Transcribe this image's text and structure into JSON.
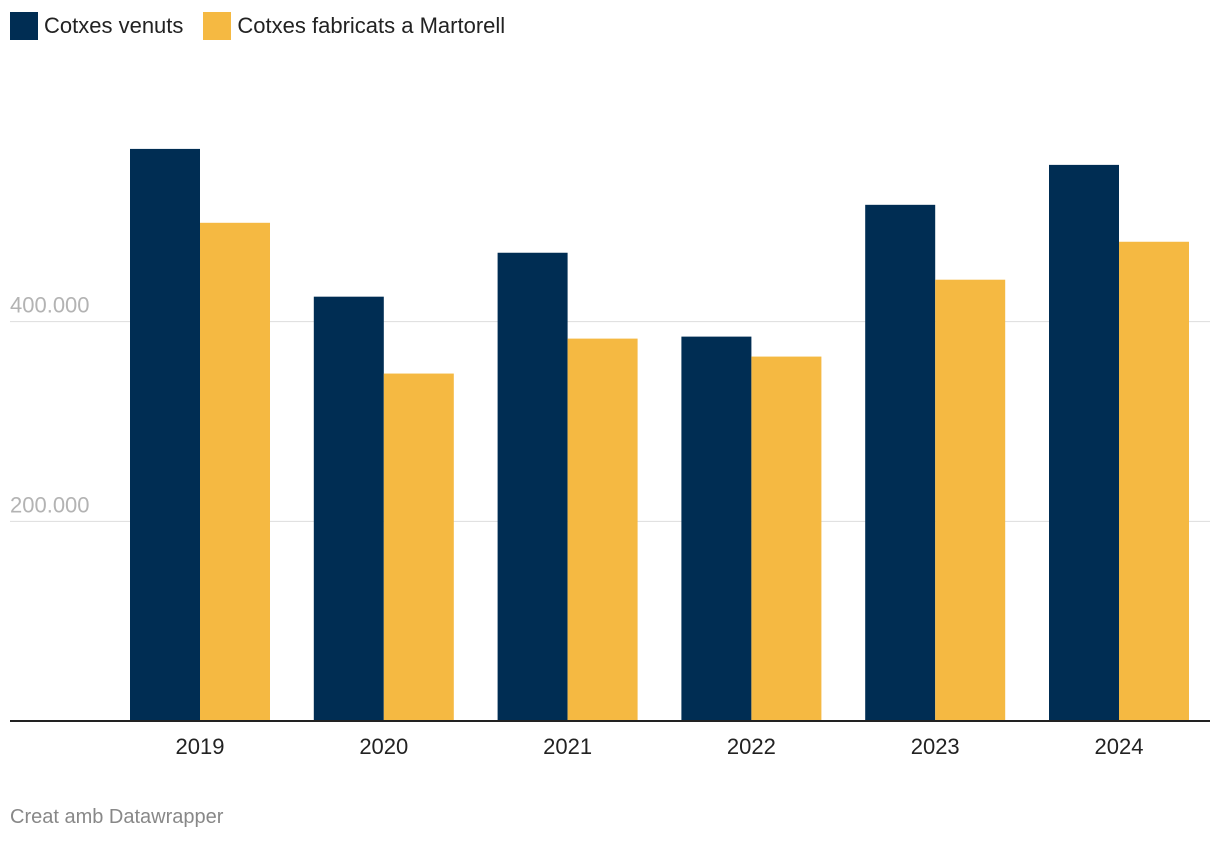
{
  "colors": {
    "series0": "#002d53",
    "series1": "#f5b942",
    "grid": "#dddddd",
    "axis": "#222222",
    "tick_label": "#b3b3b3",
    "category_label": "#222222",
    "footer": "#888888"
  },
  "footer": {
    "credit": "Creat amb Datawrapper"
  },
  "chart_data": {
    "type": "bar",
    "title": "",
    "xlabel": "",
    "ylabel": "",
    "categories": [
      "2019",
      "2020",
      "2021",
      "2022",
      "2023",
      "2024"
    ],
    "series": [
      {
        "name": "Cotxes venuts",
        "values": [
          573000,
          425000,
          469000,
          385000,
          517000,
          557000
        ]
      },
      {
        "name": "Cotxes fabricats a Martorell",
        "values": [
          499000,
          348000,
          383000,
          365000,
          442000,
          480000
        ]
      }
    ],
    "ylim": [
      0,
      630000
    ],
    "yticks": [
      {
        "value": 200000,
        "label": "200.000"
      },
      {
        "value": 400000,
        "label": "400.000"
      }
    ],
    "grid": true,
    "legend": "top-left"
  }
}
